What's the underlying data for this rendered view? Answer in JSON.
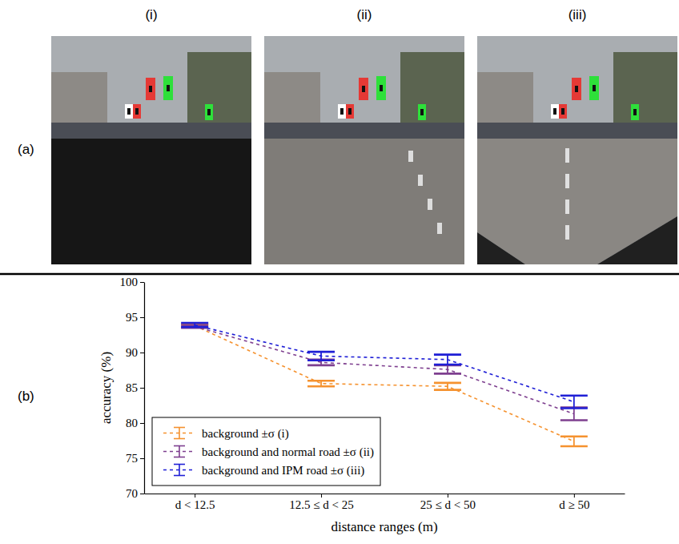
{
  "figure": {
    "panel_labels": [
      "(a)",
      "(b)"
    ],
    "image_labels": [
      "(i)",
      "(ii)",
      "(iii)"
    ]
  },
  "chart_data": {
    "type": "line",
    "x_label": "distance ranges (m)",
    "y_label": "accuracy (%)",
    "categories": [
      "d < 12.5",
      "12.5 ≤ d < 25",
      "25 ≤ d < 50",
      "d ≥ 50"
    ],
    "ylim": [
      70,
      100
    ],
    "yticks": [
      70,
      75,
      80,
      85,
      90,
      95,
      100
    ],
    "grid": false,
    "legend": "lower left",
    "series": [
      {
        "name": "background ±σ (i)",
        "color": "#f5922f",
        "line_style": "dashed",
        "values": [
          93.8,
          85.6,
          85.2,
          77.4
        ],
        "error": [
          0.2,
          0.4,
          0.5,
          0.7
        ]
      },
      {
        "name": "background and normal road ±σ (ii)",
        "color": "#7e3f8f",
        "line_style": "dashed",
        "values": [
          93.7,
          88.6,
          87.6,
          81.3
        ],
        "error": [
          0.2,
          0.4,
          0.6,
          0.9
        ]
      },
      {
        "name": "background and IPM road ±σ (iii)",
        "color": "#1f1fd6",
        "line_style": "dashed",
        "values": [
          93.9,
          89.5,
          89.0,
          83.0
        ],
        "error": [
          0.3,
          0.6,
          0.7,
          0.9
        ]
      }
    ]
  }
}
